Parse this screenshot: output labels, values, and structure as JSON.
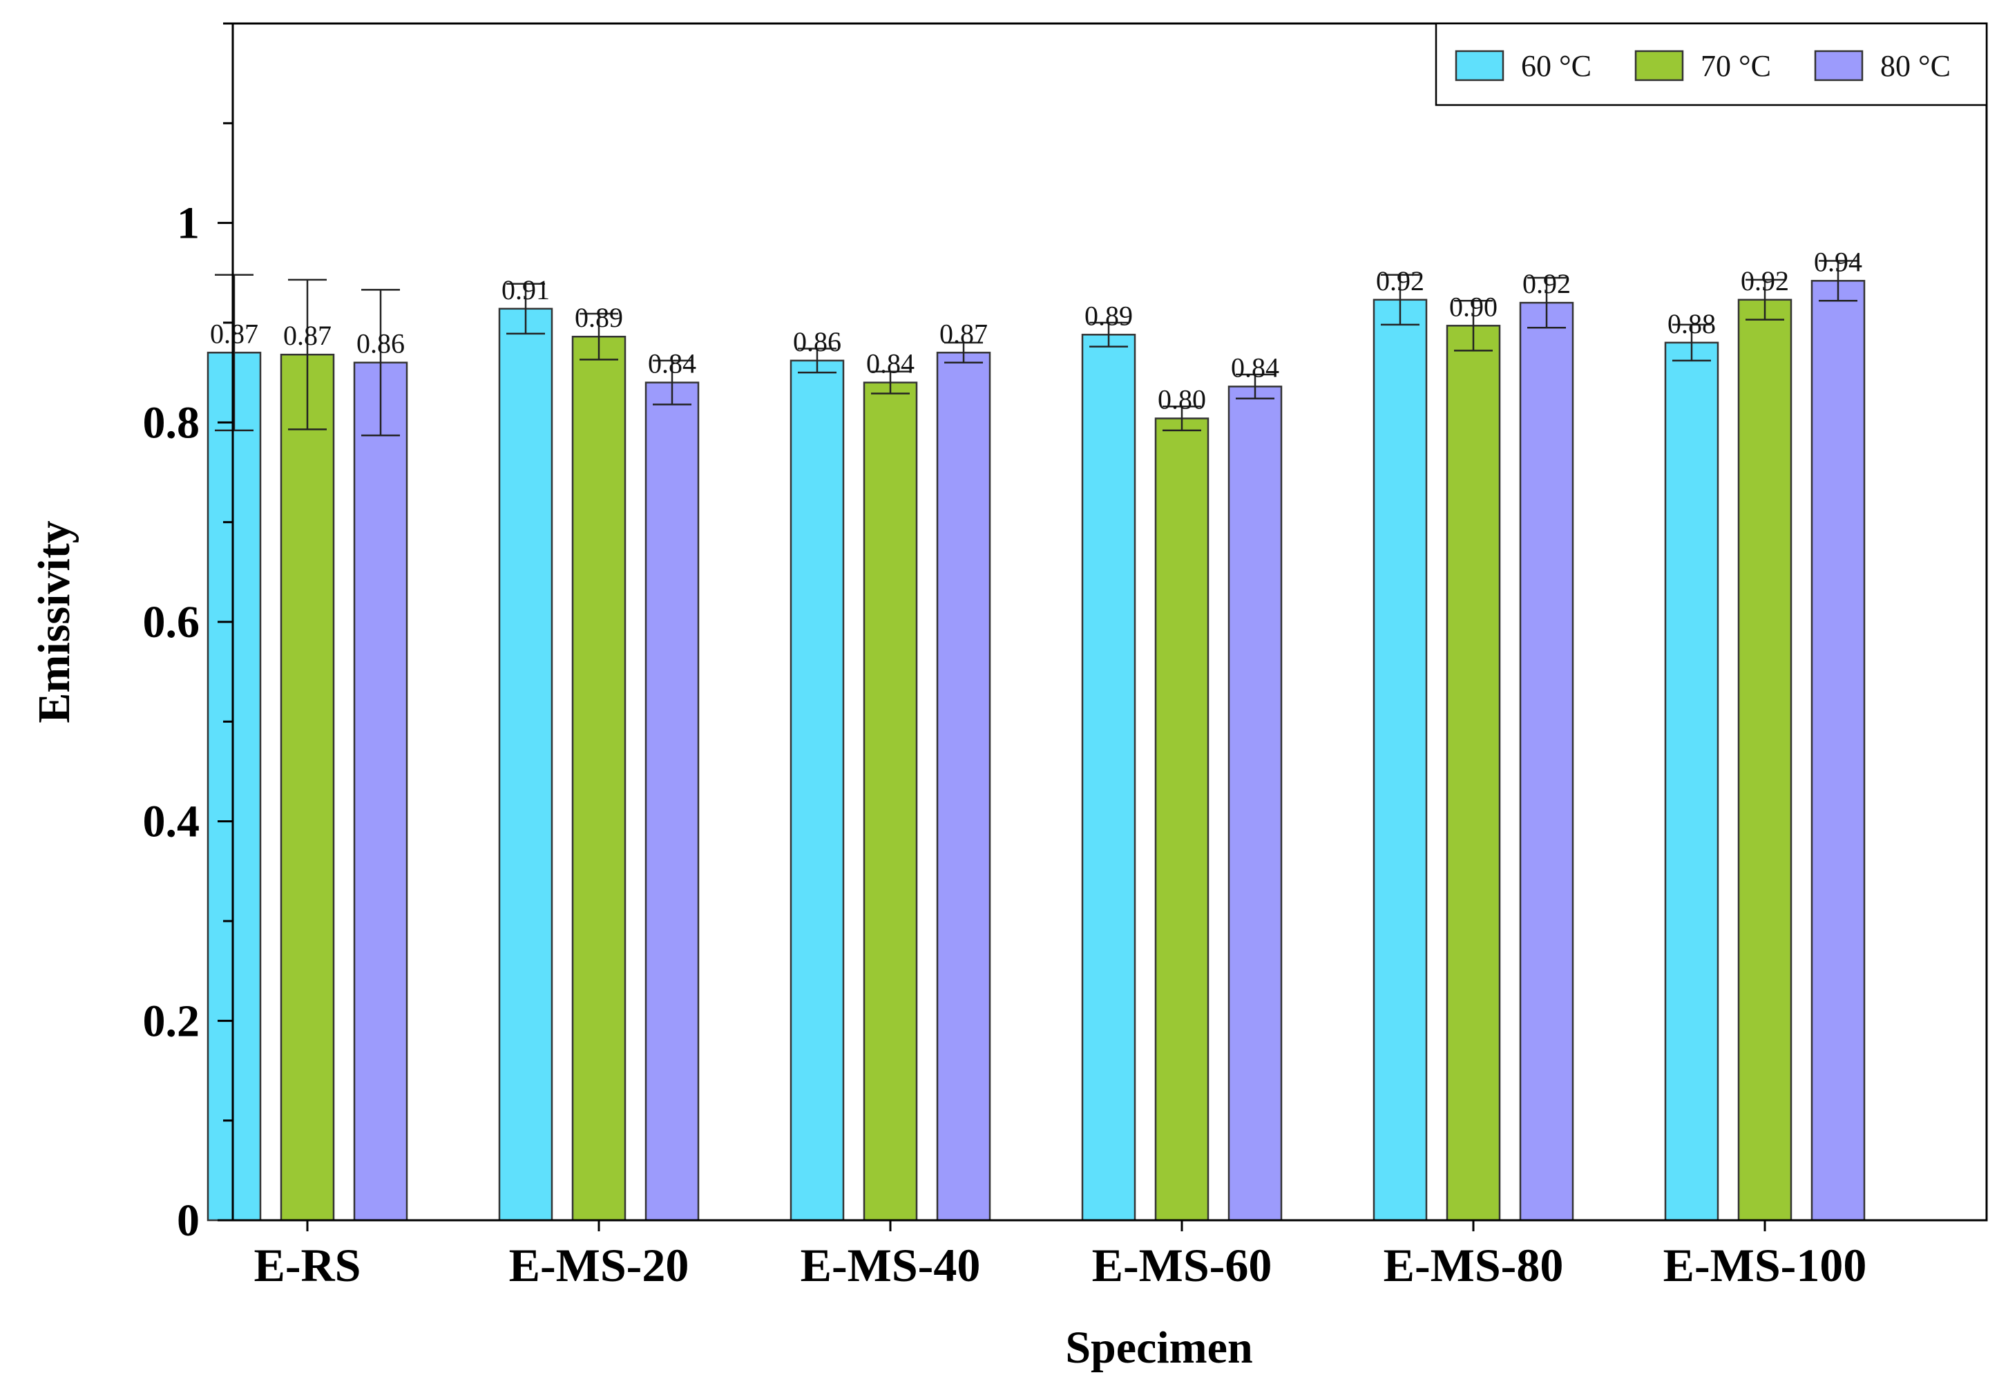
{
  "chart_data": {
    "type": "bar",
    "title": "",
    "xlabel": "Specimen",
    "ylabel": "Emissivity",
    "ylim": [
      0,
      1.2
    ],
    "yticks": [
      0,
      0.2,
      0.4,
      0.6,
      0.8,
      1
    ],
    "ytick_labels": [
      "0",
      "0.2",
      "0.4",
      "0.6",
      "0.8",
      "1"
    ],
    "grid": false,
    "legend_position": "top-right",
    "categories": [
      "E-RS",
      "E-MS-20",
      "E-MS-40",
      "E-MS-60",
      "E-MS-80",
      "E-MS-100"
    ],
    "series": [
      {
        "name": "60 °C",
        "color": "#5fe0fc",
        "values": [
          0.87,
          0.914,
          0.862,
          0.888,
          0.923,
          0.88
        ],
        "labels": [
          "0.87",
          "0.91",
          "0.86",
          "0.89",
          "0.92",
          "0.88"
        ],
        "errors": [
          0.078,
          0.025,
          0.012,
          0.012,
          0.025,
          0.018
        ]
      },
      {
        "name": "70 °C",
        "color": "#9ac834",
        "values": [
          0.868,
          0.886,
          0.84,
          0.804,
          0.897,
          0.923
        ],
        "labels": [
          "0.87",
          "0.89",
          "0.84",
          "0.80",
          "0.90",
          "0.92"
        ],
        "errors": [
          0.075,
          0.023,
          0.011,
          0.012,
          0.025,
          0.02
        ]
      },
      {
        "name": "80 °C",
        "color": "#9c9bfc",
        "values": [
          0.86,
          0.84,
          0.87,
          0.836,
          0.92,
          0.942
        ],
        "labels": [
          "0.86",
          "0.84",
          "0.87",
          "0.84",
          "0.92",
          "0.94"
        ],
        "errors": [
          0.073,
          0.022,
          0.01,
          0.012,
          0.025,
          0.02
        ]
      }
    ]
  }
}
